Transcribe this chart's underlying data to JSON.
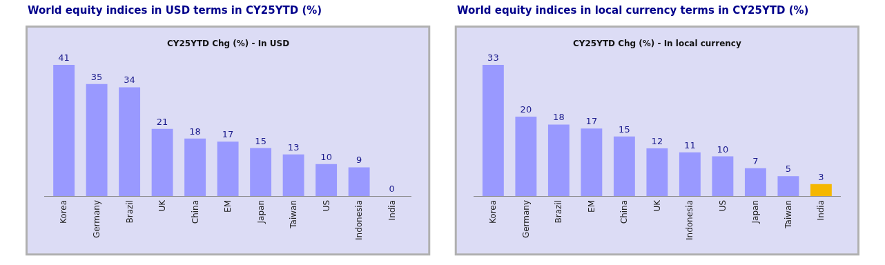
{
  "chart_data": [
    {
      "type": "bar",
      "title": "World equity indices in USD terms in CY25YTD (%)",
      "subtitle": "CY25YTD Chg (%) - In USD",
      "categories": [
        "Korea",
        "Germany",
        "Brazil",
        "UK",
        "China",
        "EM",
        "Japan",
        "Taiwan",
        "US",
        "Indonesia",
        "India"
      ],
      "values": [
        41,
        35,
        34,
        21,
        18,
        17,
        15,
        13,
        10,
        9,
        0
      ],
      "colors": [
        "#9999ff",
        "#9999ff",
        "#9999ff",
        "#9999ff",
        "#9999ff",
        "#9999ff",
        "#9999ff",
        "#9999ff",
        "#9999ff",
        "#9999ff",
        "#f5b700"
      ],
      "data_labels": true
    },
    {
      "type": "bar",
      "title": "World equity indices in local currency terms in CY25YTD (%)",
      "subtitle": "CY25YTD Chg (%) - In local currency",
      "categories": [
        "Korea",
        "Germany",
        "Brazil",
        "EM",
        "China",
        "UK",
        "Indonesia",
        "US",
        "Japan",
        "Taiwan",
        "India"
      ],
      "values": [
        33,
        20,
        18,
        17,
        15,
        12,
        11,
        10,
        7,
        5,
        3
      ],
      "colors": [
        "#9999ff",
        "#9999ff",
        "#9999ff",
        "#9999ff",
        "#9999ff",
        "#9999ff",
        "#9999ff",
        "#9999ff",
        "#9999ff",
        "#9999ff",
        "#f5b700"
      ],
      "data_labels": true
    }
  ]
}
